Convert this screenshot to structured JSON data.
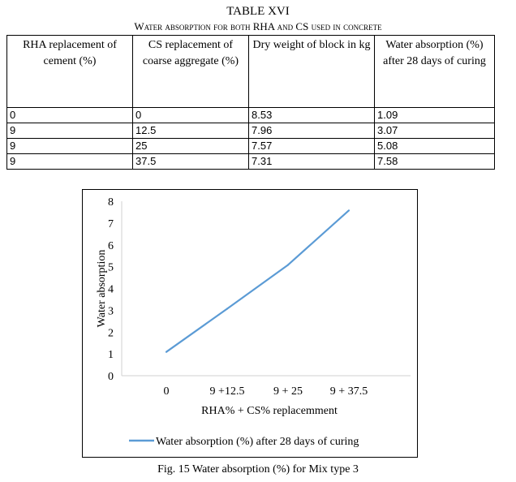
{
  "table": {
    "title": "TABLE XVI",
    "subtitle": "Water absorption for both RHA and CS used in concrete",
    "headers": [
      "RHA replacement of cement (%)",
      "CS replacement of coarse aggregate (%)",
      "Dry weight of block in kg",
      "Water absorption (%) after 28 days of curing"
    ],
    "rows": [
      [
        "0",
        "0",
        "8.53",
        "1.09"
      ],
      [
        "9",
        "12.5",
        "7.96",
        "3.07"
      ],
      [
        "9",
        "25",
        "7.57",
        "5.08"
      ],
      [
        "9",
        "37.5",
        "7.31",
        "7.58"
      ]
    ]
  },
  "chart_data": {
    "type": "line",
    "categories": [
      "0",
      "9 +12.5",
      "9 + 25",
      "9 + 37.5"
    ],
    "series": [
      {
        "name": "Water absorption (%) after 28 days of curing",
        "values": [
          1.09,
          3.07,
          5.08,
          7.58
        ]
      }
    ],
    "xlabel": "RHA% + CS% replacemment",
    "ylabel": "Water absorption",
    "ylim": [
      0,
      8
    ],
    "yticks": [
      "0",
      "1",
      "2",
      "3",
      "4",
      "5",
      "6",
      "7",
      "8"
    ],
    "grid": false,
    "legend": "bottom",
    "line_color": "#5b9bd5"
  },
  "figure": {
    "caption": "Fig. 15 Water absorption (%) for Mix type 3"
  }
}
